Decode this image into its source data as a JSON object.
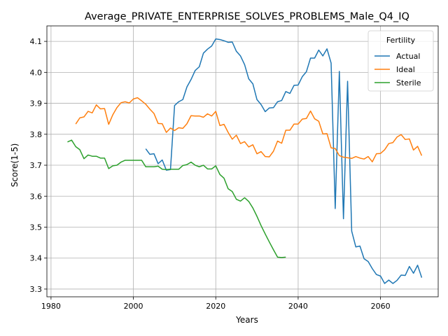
{
  "chart_data": {
    "type": "line",
    "title": "Average_PRIVATE_ENTERPRISE_SOLVES_PROBLEMS_Male_Q4_IQ",
    "xlabel": "Years",
    "ylabel": "Score(1-5)",
    "xlim": [
      1979,
      2074
    ],
    "ylim": [
      3.275,
      4.15
    ],
    "xticks": [
      1980,
      2000,
      2020,
      2040,
      2060
    ],
    "yticks": [
      3.3,
      3.4,
      3.5,
      3.6,
      3.7,
      3.8,
      3.9,
      4.0,
      4.1
    ],
    "grid": true,
    "legend": {
      "title": "Fertility",
      "placement": "top-right"
    },
    "series": [
      {
        "name": "Actual",
        "color": "#1f77b4",
        "x": [
          2003,
          2004,
          2005,
          2006,
          2007,
          2008,
          2009,
          2010,
          2011,
          2012,
          2013,
          2014,
          2015,
          2016,
          2017,
          2018,
          2019,
          2020,
          2021,
          2022,
          2023,
          2024,
          2025,
          2026,
          2027,
          2028,
          2029,
          2030,
          2031,
          2032,
          2033,
          2034,
          2035,
          2036,
          2037,
          2038,
          2039,
          2040,
          2041,
          2042,
          2043,
          2044,
          2045,
          2046,
          2047,
          2048,
          2049,
          2050,
          2051,
          2052,
          2053,
          2054,
          2055,
          2056,
          2057,
          2058,
          2059,
          2060,
          2061,
          2062,
          2063,
          2064,
          2065,
          2066,
          2067,
          2068,
          2069,
          2070
        ],
        "y": [
          3.753,
          3.735,
          3.737,
          3.705,
          3.717,
          3.684,
          3.686,
          3.893,
          3.905,
          3.912,
          3.953,
          3.977,
          4.006,
          4.018,
          4.062,
          4.075,
          4.085,
          4.108,
          4.106,
          4.102,
          4.097,
          4.098,
          4.068,
          4.053,
          4.025,
          3.979,
          3.963,
          3.912,
          3.896,
          3.873,
          3.885,
          3.886,
          3.905,
          3.909,
          3.938,
          3.932,
          3.958,
          3.959,
          3.986,
          4.002,
          4.046,
          4.046,
          4.072,
          4.053,
          4.076,
          4.03,
          3.56,
          4.003,
          3.527,
          3.971,
          3.487,
          3.436,
          3.439,
          3.398,
          3.389,
          3.366,
          3.347,
          3.342,
          3.318,
          3.329,
          3.318,
          3.328,
          3.345,
          3.344,
          3.373,
          3.351,
          3.377,
          3.337
        ]
      },
      {
        "name": "Ideal",
        "color": "#ff7f0e",
        "x": [
          1986,
          1987,
          1988,
          1989,
          1990,
          1991,
          1992,
          1993,
          1994,
          1995,
          1996,
          1997,
          1998,
          1999,
          2000,
          2001,
          2002,
          2003,
          2004,
          2005,
          2006,
          2007,
          2008,
          2009,
          2010,
          2011,
          2012,
          2013,
          2014,
          2015,
          2016,
          2017,
          2018,
          2019,
          2020,
          2021,
          2022,
          2023,
          2024,
          2025,
          2026,
          2027,
          2028,
          2029,
          2030,
          2031,
          2032,
          2033,
          2034,
          2035,
          2036,
          2037,
          2038,
          2039,
          2040,
          2041,
          2042,
          2043,
          2044,
          2045,
          2046,
          2047,
          2048,
          2049,
          2050,
          2051,
          2052,
          2053,
          2054,
          2055,
          2056,
          2057,
          2058,
          2059,
          2060,
          2061,
          2062,
          2063,
          2064,
          2065,
          2066,
          2067,
          2068,
          2069,
          2070
        ],
        "y": [
          3.833,
          3.853,
          3.856,
          3.874,
          3.869,
          3.895,
          3.882,
          3.883,
          3.832,
          3.863,
          3.886,
          3.902,
          3.905,
          3.901,
          3.914,
          3.918,
          3.908,
          3.897,
          3.881,
          3.867,
          3.835,
          3.834,
          3.806,
          3.82,
          3.812,
          3.821,
          3.819,
          3.834,
          3.86,
          3.859,
          3.859,
          3.855,
          3.866,
          3.859,
          3.874,
          3.828,
          3.832,
          3.806,
          3.784,
          3.797,
          3.77,
          3.776,
          3.759,
          3.766,
          3.737,
          3.744,
          3.728,
          3.727,
          3.745,
          3.778,
          3.771,
          3.813,
          3.813,
          3.833,
          3.833,
          3.849,
          3.851,
          3.875,
          3.85,
          3.842,
          3.801,
          3.802,
          3.756,
          3.754,
          3.731,
          3.726,
          3.724,
          3.722,
          3.728,
          3.723,
          3.72,
          3.728,
          3.711,
          3.737,
          3.738,
          3.75,
          3.77,
          3.773,
          3.791,
          3.799,
          3.783,
          3.785,
          3.749,
          3.761,
          3.731
        ]
      },
      {
        "name": "Sterile",
        "color": "#2ca02c",
        "x": [
          1984,
          1985,
          1986,
          1987,
          1988,
          1989,
          1990,
          1991,
          1992,
          1993,
          1994,
          1995,
          1996,
          1997,
          1998,
          1999,
          2000,
          2001,
          2002,
          2003,
          2004,
          2005,
          2006,
          2007,
          2008,
          2009,
          2010,
          2011,
          2012,
          2013,
          2014,
          2015,
          2016,
          2017,
          2018,
          2019,
          2020,
          2021,
          2022,
          2023,
          2024,
          2025,
          2026,
          2027,
          2028,
          2029,
          2030,
          2031,
          2032,
          2033,
          2034,
          2035,
          2036,
          2037
        ],
        "y": [
          3.775,
          3.781,
          3.76,
          3.75,
          3.721,
          3.733,
          3.729,
          3.729,
          3.723,
          3.723,
          3.689,
          3.698,
          3.7,
          3.71,
          3.716,
          3.716,
          3.716,
          3.716,
          3.716,
          3.695,
          3.695,
          3.695,
          3.697,
          3.687,
          3.686,
          3.687,
          3.687,
          3.687,
          3.699,
          3.702,
          3.71,
          3.7,
          3.695,
          3.7,
          3.688,
          3.688,
          3.698,
          3.67,
          3.658,
          3.624,
          3.615,
          3.59,
          3.584,
          3.595,
          3.583,
          3.562,
          3.535,
          3.505,
          3.478,
          3.452,
          3.427,
          3.403,
          3.402,
          3.403
        ]
      }
    ]
  }
}
